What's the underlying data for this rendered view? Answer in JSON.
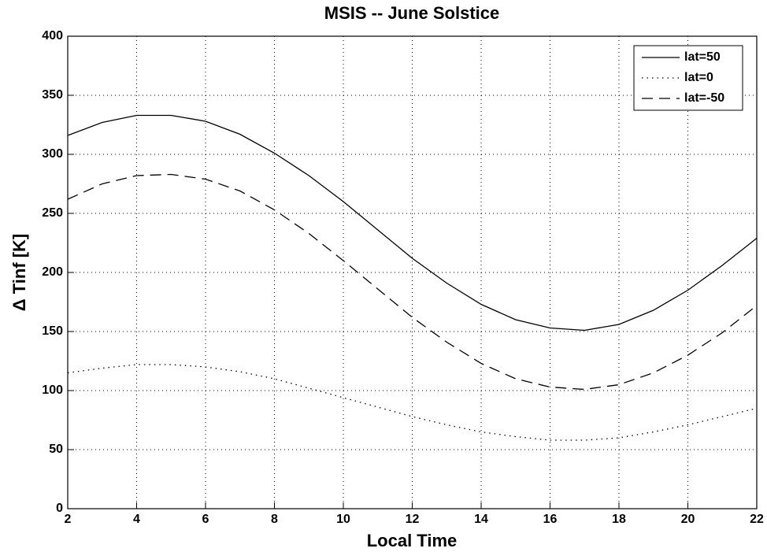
{
  "chart_data": {
    "type": "line",
    "title": "MSIS -- June Solstice",
    "xlabel": "Local Time",
    "ylabel": "Δ Tinf [K]",
    "x": [
      2,
      3,
      4,
      5,
      6,
      7,
      8,
      9,
      10,
      11,
      12,
      13,
      14,
      15,
      16,
      17,
      18,
      19,
      20,
      21,
      22
    ],
    "series": [
      {
        "name": "lat=50",
        "color": "#000000",
        "linestyle": "solid",
        "values": [
          316,
          327,
          333,
          333,
          328,
          317,
          301,
          282,
          260,
          236,
          212,
          191,
          173,
          160,
          153,
          151,
          156,
          168,
          185,
          206,
          229
        ]
      },
      {
        "name": "lat=0",
        "color": "#000000",
        "linestyle": "dotted",
        "values": [
          115,
          119,
          122,
          122,
          120,
          116,
          110,
          102,
          94,
          86,
          78,
          71,
          65,
          61,
          58,
          58,
          60,
          65,
          71,
          78,
          85
        ]
      },
      {
        "name": "lat=-50",
        "color": "#000000",
        "linestyle": "dashed",
        "values": [
          262,
          275,
          282,
          283,
          279,
          269,
          253,
          233,
          210,
          186,
          162,
          141,
          123,
          110,
          103,
          101,
          105,
          115,
          130,
          149,
          172
        ]
      }
    ],
    "xlim": [
      2,
      22
    ],
    "xticks": [
      2,
      4,
      6,
      8,
      10,
      12,
      14,
      16,
      18,
      20,
      22
    ],
    "ylim": [
      0,
      400
    ],
    "yticks": [
      0,
      50,
      100,
      150,
      200,
      250,
      300,
      350,
      400
    ],
    "grid": true,
    "legend": "upper right"
  }
}
